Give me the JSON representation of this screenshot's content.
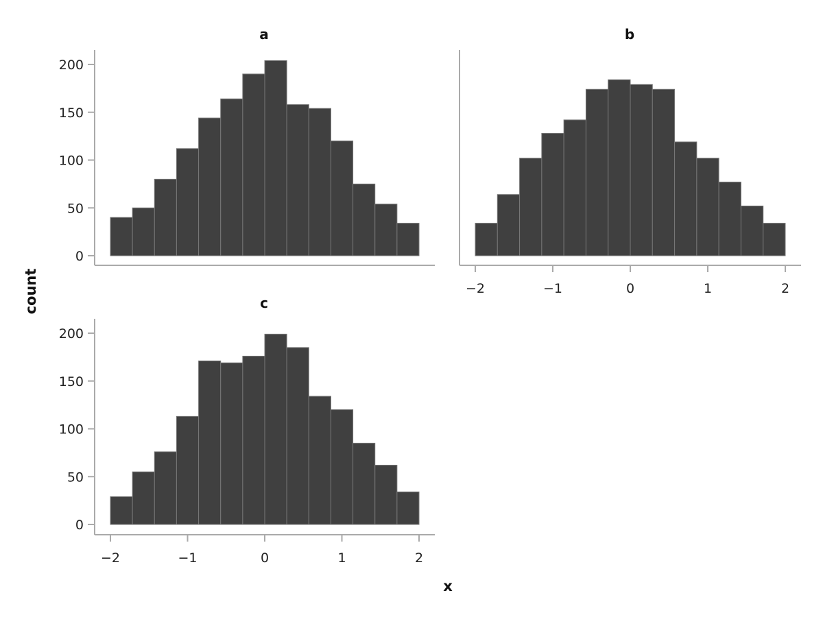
{
  "chart_data": {
    "type": "bar",
    "subtype": "histogram-facets",
    "xlabel": "x",
    "ylabel": "count",
    "bin_edges_range": [
      -2,
      2
    ],
    "bins": 14,
    "xticks": [
      -2,
      -1,
      0,
      1,
      2
    ],
    "xtick_labels": [
      "−2",
      "−1",
      "0",
      "1",
      "2"
    ],
    "yticks": [
      0,
      50,
      100,
      150,
      200
    ],
    "ylim": [
      0,
      215
    ],
    "bar_color": "#404040",
    "bar_edge_color": "#777777",
    "axis_color": "#aaaaaa",
    "grid": false,
    "panels": [
      {
        "title": "a",
        "show_xticks": false,
        "show_yticks": true,
        "values": [
          40,
          50,
          80,
          112,
          144,
          164,
          190,
          204,
          158,
          154,
          120,
          75,
          54,
          34
        ]
      },
      {
        "title": "b",
        "show_xticks": true,
        "show_yticks": false,
        "values": [
          34,
          64,
          102,
          128,
          142,
          174,
          184,
          179,
          174,
          119,
          102,
          77,
          52,
          34
        ]
      },
      {
        "title": "c",
        "show_xticks": true,
        "show_yticks": true,
        "values": [
          29,
          55,
          76,
          113,
          171,
          169,
          176,
          199,
          185,
          134,
          120,
          85,
          62,
          34
        ]
      }
    ]
  }
}
